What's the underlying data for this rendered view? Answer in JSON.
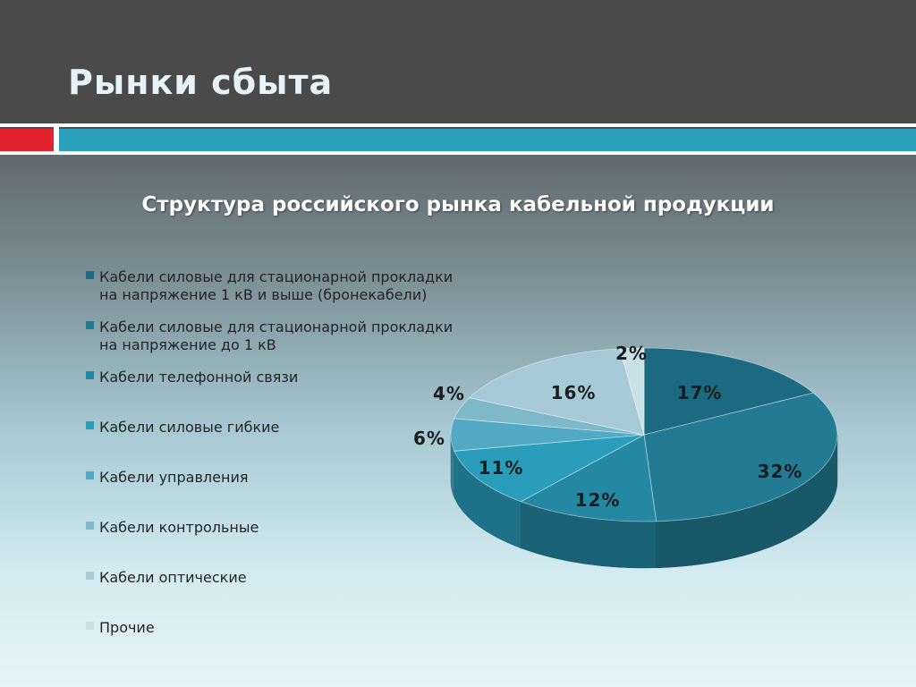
{
  "slide": {
    "title": "Рынки сбыта"
  },
  "chart_data": {
    "type": "pie",
    "title": "Структура российского рынка кабельной продукции",
    "legend_position": "left",
    "slices": [
      {
        "name": "Кабели силовые для  стационарной прокладки на напряжение 1 кВ и выше (бронекабели)",
        "value": 17,
        "label": "17%",
        "color": "#1b6a80"
      },
      {
        "name": "Кабели силовые для стационарной прокладки на напряжение до 1 кВ",
        "value": 32,
        "label": "32%",
        "color": "#227b92"
      },
      {
        "name": "Кабели телефонной связи",
        "value": 12,
        "label": "12%",
        "color": "#2488a3"
      },
      {
        "name": "Кабели силовые гибкие",
        "value": 11,
        "label": "11%",
        "color": "#2a9dbb"
      },
      {
        "name": "Кабели управления",
        "value": 6,
        "label": "6%",
        "color": "#51a9c3"
      },
      {
        "name": "Кабели контрольные",
        "value": 4,
        "label": "4%",
        "color": "#7eb8c9"
      },
      {
        "name": "Кабели оптические",
        "value": 16,
        "label": "16%",
        "color": "#a7cbd6"
      },
      {
        "name": "Прочие",
        "value": 2,
        "label": "2%",
        "color": "#c9e0e6"
      }
    ]
  },
  "legend": {
    "items": [
      {
        "line1": "Кабели силовые для  стационарной прокладки",
        "line2": "на напряжение 1 кВ и выше (бронекабели)",
        "color": "#1b6a80"
      },
      {
        "line1": "Кабели силовые для стационарной прокладки",
        "line2": "на напряжение до 1 кВ",
        "color": "#227b92"
      },
      {
        "line1": "Кабели телефонной связи",
        "line2": "",
        "color": "#2488a3"
      },
      {
        "line1": "Кабели силовые гибкие",
        "line2": "",
        "color": "#2a9dbb"
      },
      {
        "line1": "Кабели управления",
        "line2": "",
        "color": "#51a9c3"
      },
      {
        "line1": "Кабели контрольные",
        "line2": "",
        "color": "#7eb8c9"
      },
      {
        "line1": "Кабели оптические",
        "line2": "",
        "color": "#a7cbd6"
      },
      {
        "line1": "Прочие",
        "line2": "",
        "color": "#c9e0e6"
      }
    ]
  }
}
